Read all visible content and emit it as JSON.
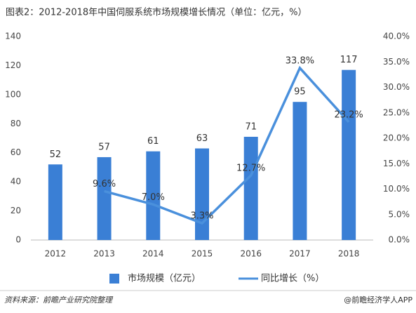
{
  "chart_data": {
    "type": "bar",
    "title": "图表2：2012-2018年中国伺服系统市场规模增长情况（单位：亿元，%）",
    "categories": [
      "2012",
      "2013",
      "2014",
      "2015",
      "2016",
      "2017",
      "2018"
    ],
    "series": [
      {
        "name": "市场规模（亿元）",
        "type": "bar",
        "color": "#3a7fd5",
        "values": [
          52,
          57,
          61,
          63,
          71,
          95,
          117
        ]
      },
      {
        "name": "同比增长（%）",
        "type": "line",
        "axis": "y2",
        "color": "#4a90dc",
        "values": [
          null,
          9.6,
          7.0,
          3.3,
          12.7,
          33.8,
          23.2
        ],
        "value_labels": [
          null,
          "9.6%",
          "7.0%",
          "3.3%",
          "12.7%",
          "33.8%",
          "23.2%"
        ]
      }
    ],
    "ylim": [
      0,
      140
    ],
    "yticks": [
      0,
      20,
      40,
      60,
      80,
      100,
      120,
      140
    ],
    "y2lim": [
      0,
      40
    ],
    "y2ticks": [
      {
        "value": 0,
        "label": "0.0%"
      },
      {
        "value": 5,
        "label": "5.0%"
      },
      {
        "value": 10,
        "label": "10.0%"
      },
      {
        "value": 15,
        "label": "15.0%"
      },
      {
        "value": 20,
        "label": "20.0%"
      },
      {
        "value": 25,
        "label": "25.0%"
      },
      {
        "value": 30,
        "label": "30.0%"
      },
      {
        "value": 35,
        "label": "35.0%"
      },
      {
        "value": 40,
        "label": "40.0%"
      }
    ],
    "legend": "bottom",
    "source": "资料来源：前瞻产业研究院整理",
    "footer": "@前瞻经济学人APP"
  }
}
